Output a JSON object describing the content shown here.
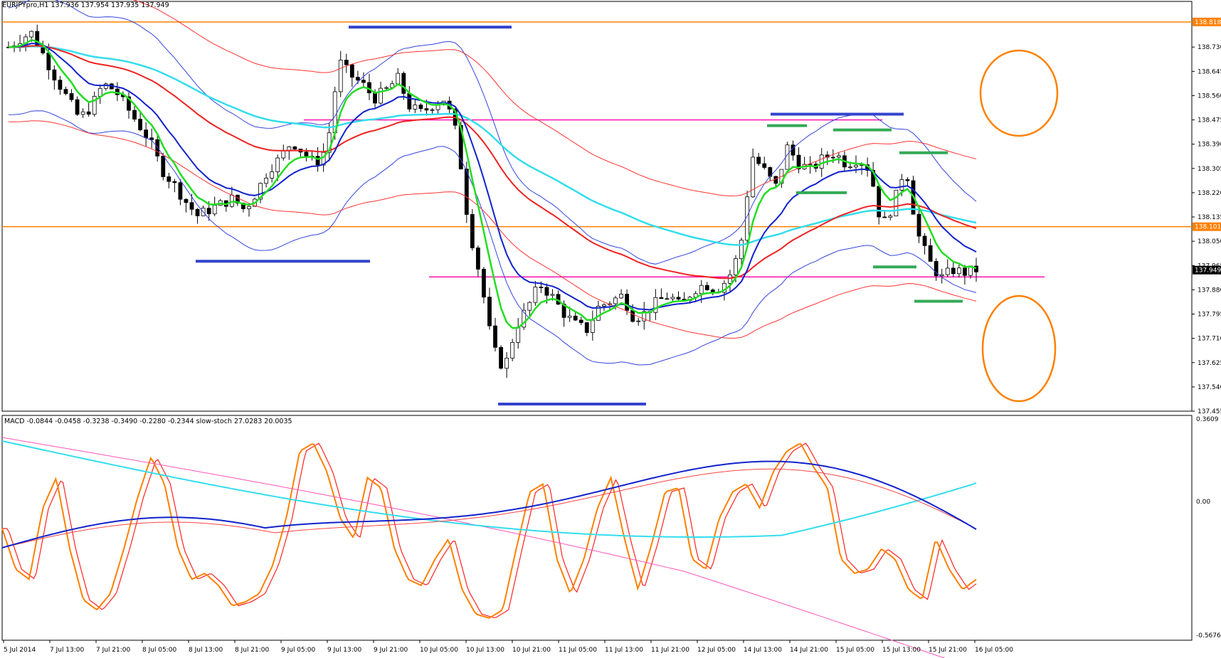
{
  "header": {
    "main": "EURJPYpro,H1  137.936 137.954 137.935 137.949",
    "sub": "MACD -0.0844 -0.0458 -0.3238 -0.3490 -0.2280 -0.2344  slow-stoch 27.0283 20.0035"
  },
  "price_axis": {
    "ticks": [
      138.73,
      138.645,
      138.56,
      138.475,
      138.39,
      138.305,
      138.22,
      138.135,
      138.05,
      137.965,
      137.88,
      137.795,
      137.71,
      137.625,
      137.54,
      137.455
    ],
    "top_label": "138.818",
    "last_price_label": "137.949",
    "level_label": "138.101"
  },
  "sub_axis": {
    "top": "0.3609",
    "zero": "0.00",
    "bottom": "-0.5676"
  },
  "time_axis": [
    "5 Jul 2014",
    "7 Jul 13:00",
    "7 Jul 21:00",
    "8 Jul 05:00",
    "8 Jul 13:00",
    "8 Jul 21:00",
    "9 Jul 05:00",
    "9 Jul 13:00",
    "9 Jul 21:00",
    "10 Jul 05:00",
    "10 Jul 13:00",
    "10 Jul 21:00",
    "11 Jul 05:00",
    "11 Jul 13:00",
    "11 Jul 21:00",
    "12 Jul 05:00",
    "14 Jul 13:00",
    "14 Jul 21:00",
    "15 Jul 05:00",
    "15 Jul 13:00",
    "15 Jul 21:00",
    "16 Jul 05:00"
  ],
  "colors": {
    "orange_level": "#ff8000",
    "magenta_level": "#ff00aa",
    "blue_marker": "#3344cc",
    "green_marker": "#33aa55",
    "ema_green": "#22dd22",
    "ema_blue": "#1122cc",
    "ema_red": "#ee2222",
    "ema_cyan": "#33ddee",
    "bollinger": "#3344dd",
    "envelope": "#ff3333",
    "stoch_main": "#ff8000",
    "stoch_signal": "#ff2222",
    "macd": "#1122cc",
    "macd_signal": "#ff4444",
    "macd_slow": "#33ddee",
    "macd_slow2": "#ff55bb"
  },
  "chart_data": {
    "type": "candlestick",
    "symbol": "EURJPYpro",
    "timeframe": "H1",
    "ylim": [
      137.455,
      138.86
    ],
    "horizontal_levels": [
      {
        "price": 138.818,
        "color": "orange"
      },
      {
        "price": 138.101,
        "color": "orange"
      },
      {
        "price": 138.475,
        "color": "magenta"
      },
      {
        "price": 137.925,
        "color": "magenta"
      }
    ],
    "candle_path": [
      138.73,
      138.76,
      138.78,
      138.7,
      138.62,
      138.55,
      138.48,
      138.52,
      138.6,
      138.58,
      138.52,
      138.46,
      138.4,
      138.3,
      138.25,
      138.19,
      138.14,
      138.16,
      138.18,
      138.2,
      138.16,
      138.22,
      138.3,
      138.34,
      138.4,
      138.36,
      138.32,
      138.38,
      138.68,
      138.63,
      138.6,
      138.55,
      138.58,
      138.62,
      138.52,
      138.5,
      138.53,
      138.55,
      138.42,
      138.1,
      137.92,
      137.68,
      137.6,
      137.75,
      137.82,
      137.9,
      137.86,
      137.8,
      137.76,
      137.74,
      137.82,
      137.84,
      137.86,
      137.78,
      137.8,
      137.84,
      137.86,
      137.82,
      137.88,
      137.9,
      137.88,
      137.92,
      138.02,
      138.35,
      138.3,
      138.24,
      138.38,
      138.32,
      138.3,
      138.34,
      138.36,
      138.32,
      138.34,
      138.3,
      138.1,
      138.18,
      138.32,
      138.08,
      137.98,
      137.92,
      137.95,
      137.94,
      137.95
    ],
    "stoch_path": [
      50,
      30,
      25,
      60,
      75,
      40,
      15,
      10,
      18,
      40,
      65,
      85,
      72,
      40,
      25,
      28,
      22,
      12,
      14,
      18,
      32,
      55,
      88,
      92,
      78,
      55,
      45,
      75,
      70,
      40,
      25,
      22,
      35,
      45,
      20,
      8,
      6,
      10,
      40,
      68,
      72,
      35,
      18,
      35,
      60,
      75,
      45,
      20,
      42,
      68,
      70,
      35,
      30,
      55,
      68,
      72,
      60,
      78,
      88,
      92,
      80,
      70,
      35,
      28,
      30,
      40,
      35,
      20,
      15,
      45,
      30,
      20,
      25
    ]
  },
  "annotations": {
    "circles": 2,
    "circle_color": "orange"
  }
}
